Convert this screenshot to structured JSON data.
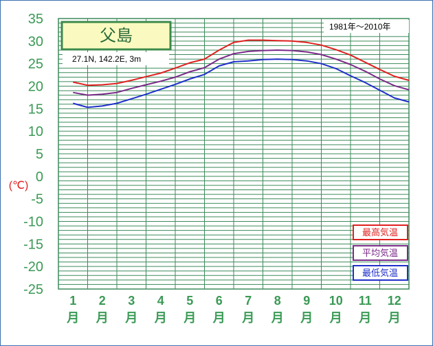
{
  "chart_data": {
    "type": "line",
    "title": "父島",
    "location_info": "27.1N,  142.2E,  3m",
    "period": "1981年〜2010年",
    "ylabel": "(℃)",
    "ylim": [
      -25,
      35
    ],
    "y_ticks": [
      "35",
      "30",
      "25",
      "20",
      "15",
      "10",
      "5",
      "0",
      "-5",
      "-10",
      "-15",
      "-20",
      "-25"
    ],
    "categories": [
      "1\n月",
      "2\n月",
      "3\n月",
      "4\n月",
      "5\n月",
      "6\n月",
      "7\n月",
      "8\n月",
      "9\n月",
      "10\n月",
      "11\n月",
      "12\n月"
    ],
    "month_numbers": [
      "1",
      "2",
      "3",
      "4",
      "5",
      "6",
      "7",
      "8",
      "9",
      "10",
      "11",
      "12"
    ],
    "month_suffix": "月",
    "grid": true,
    "legend_position": "bottom-right",
    "series": [
      {
        "name": "最高気温",
        "color": "#e02020",
        "x": [
          1,
          1.5,
          2,
          2.5,
          3,
          3.5,
          4,
          4.5,
          5,
          5.5,
          6,
          6.5,
          7,
          7.5,
          8,
          8.5,
          9,
          9.5,
          10,
          10.5,
          11,
          11.5,
          12,
          12.5
        ],
        "values": [
          20.9,
          20.2,
          20.3,
          20.6,
          21.3,
          22.1,
          22.9,
          24.0,
          25.2,
          26.0,
          28.0,
          29.7,
          30.2,
          30.2,
          30.1,
          30.0,
          29.7,
          29.1,
          28.1,
          26.9,
          25.3,
          23.7,
          22.2,
          21.3
        ]
      },
      {
        "name": "平均気温",
        "color": "#7b2a88",
        "x": [
          1,
          1.5,
          2,
          2.5,
          3,
          3.5,
          4,
          4.5,
          5,
          5.5,
          6,
          6.5,
          7,
          7.5,
          8,
          8.5,
          9,
          9.5,
          10,
          10.5,
          11,
          11.5,
          12,
          12.5
        ],
        "values": [
          18.6,
          18.0,
          18.2,
          18.6,
          19.5,
          20.3,
          21.1,
          22.0,
          23.2,
          24.1,
          26.0,
          27.2,
          27.7,
          27.9,
          28.0,
          27.9,
          27.6,
          27.0,
          26.0,
          24.8,
          23.3,
          21.6,
          20.1,
          19.2
        ]
      },
      {
        "name": "最低気温",
        "color": "#1f2fc9",
        "x": [
          1,
          1.5,
          2,
          2.5,
          3,
          3.5,
          4,
          4.5,
          5,
          5.5,
          6,
          6.5,
          7,
          7.5,
          8,
          8.5,
          9,
          9.5,
          10,
          10.5,
          11,
          11.5,
          12,
          12.5
        ],
        "values": [
          16.2,
          15.3,
          15.6,
          16.2,
          17.2,
          18.2,
          19.3,
          20.4,
          21.6,
          22.6,
          24.5,
          25.4,
          25.6,
          25.9,
          26.0,
          25.9,
          25.6,
          25.0,
          23.9,
          22.3,
          20.8,
          19.1,
          17.4,
          16.5
        ]
      }
    ]
  }
}
